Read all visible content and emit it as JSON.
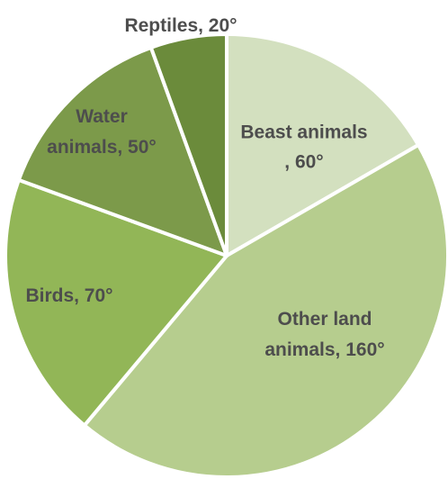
{
  "chart_data": {
    "type": "pie",
    "unit": "°",
    "slices": [
      {
        "name": "Beast animals",
        "value": 60,
        "label_lines": [
          "Beast animals",
          ", 60°"
        ],
        "color": "#d3e0bf"
      },
      {
        "name": "Other land animals",
        "value": 160,
        "label_lines": [
          "Other land",
          "animals, 160°"
        ],
        "color": "#b6cd8e"
      },
      {
        "name": "Birds",
        "value": 70,
        "label_lines": [
          "Birds, 70°"
        ],
        "color": "#92b657"
      },
      {
        "name": "Water animals",
        "value": 50,
        "label_lines": [
          "Water",
          "animals, 50°"
        ],
        "color": "#7c9a4a"
      },
      {
        "name": "Reptiles",
        "value": 20,
        "label_lines": [
          "Reptiles, 20°"
        ],
        "color": "#6b8b3b"
      }
    ]
  }
}
